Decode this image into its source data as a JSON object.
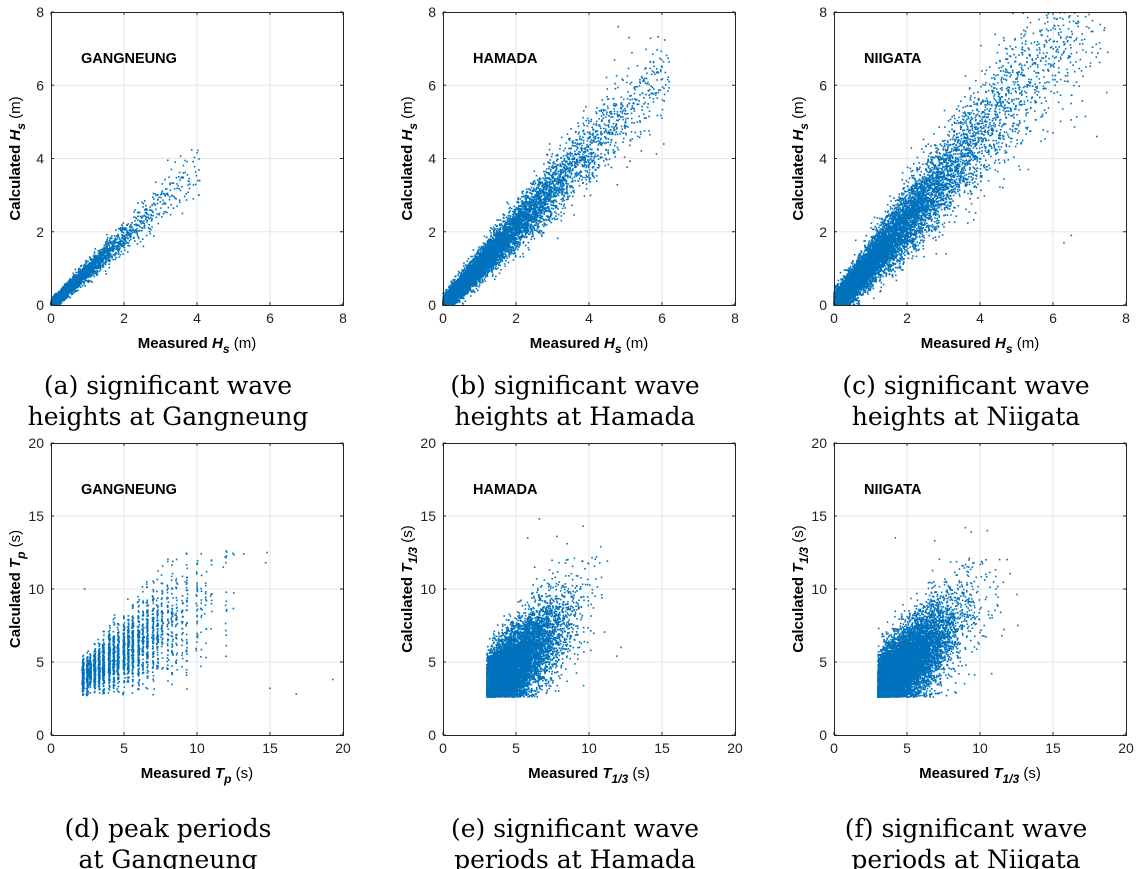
{
  "chart_data": [
    {
      "panel": "a",
      "type": "scatter",
      "station_label": "GANGNEUNG",
      "xlabel": {
        "prefix": "Measured ",
        "sym": "H",
        "sub": "s",
        "unit": " (m)"
      },
      "ylabel": {
        "prefix": "Calculated ",
        "sym": "H",
        "sub": "s",
        "unit": " (m)"
      },
      "xlim": [
        0,
        8
      ],
      "ylim": [
        0,
        8
      ],
      "xticks": [
        "0",
        "2",
        "4",
        "6",
        "8"
      ],
      "yticks": [
        "0",
        "2",
        "4",
        "6",
        "8"
      ],
      "caption": [
        "(a) significant wave",
        "heights at Gangneung"
      ],
      "color": "#0072BD",
      "dist": {
        "kind": "h",
        "n": 2600,
        "xmax": 4.1,
        "slope": 0.92,
        "noise": 0.2
      },
      "points": [
        [
          3.2,
          3.95
        ],
        [
          3.4,
          3.9
        ],
        [
          3.5,
          3.5
        ],
        [
          3.8,
          3.3
        ],
        [
          3.9,
          2.9
        ],
        [
          4.05,
          3.0
        ],
        [
          3.6,
          2.5
        ],
        [
          3.3,
          3.7
        ],
        [
          2.5,
          2.8
        ],
        [
          2.9,
          3.0
        ]
      ]
    },
    {
      "panel": "b",
      "type": "scatter",
      "station_label": "HAMADA",
      "xlabel": {
        "prefix": "Measured ",
        "sym": "H",
        "sub": "s",
        "unit": " (m)"
      },
      "ylabel": {
        "prefix": "Calculated ",
        "sym": "H",
        "sub": "s",
        "unit": " (m)"
      },
      "xlim": [
        0,
        8
      ],
      "ylim": [
        0,
        8
      ],
      "xticks": [
        "0",
        "2",
        "4",
        "6",
        "8"
      ],
      "yticks": [
        "0",
        "2",
        "4",
        "6",
        "8"
      ],
      "caption": [
        "(b) significant wave",
        "heights at Hamada"
      ],
      "color": "#0072BD",
      "dist": {
        "kind": "h",
        "n": 9000,
        "xmax": 6.2,
        "slope": 1.05,
        "noise": 0.3
      },
      "points": [
        [
          4.8,
          7.6
        ],
        [
          5.1,
          7.3
        ],
        [
          5.8,
          6.3
        ],
        [
          6.2,
          6.1
        ],
        [
          5.0,
          5.3
        ],
        [
          6.0,
          5.1
        ],
        [
          5.3,
          5.6
        ],
        [
          4.5,
          5.9
        ],
        [
          5.9,
          5.8
        ]
      ]
    },
    {
      "panel": "c",
      "type": "scatter",
      "station_label": "NIIGATA",
      "xlabel": {
        "prefix": "Measured ",
        "sym": "H",
        "sub": "s",
        "unit": " (m)"
      },
      "ylabel": {
        "prefix": "Calculated ",
        "sym": "H",
        "sub": "s",
        "unit": " (m)"
      },
      "xlim": [
        0,
        8
      ],
      "ylim": [
        0,
        8
      ],
      "xticks": [
        "0",
        "2",
        "4",
        "6",
        "8"
      ],
      "yticks": [
        "0",
        "2",
        "4",
        "6",
        "8"
      ],
      "caption": [
        "(c) significant wave",
        "heights at Niigata"
      ],
      "color": "#0072BD",
      "dist": {
        "kind": "h",
        "n": 10000,
        "xmax": 7.5,
        "slope": 1.15,
        "noise": 0.45
      },
      "points": [
        [
          7.4,
          7.5
        ],
        [
          7.5,
          6.9
        ],
        [
          6.8,
          7.4
        ],
        [
          7.3,
          7.0
        ],
        [
          6.5,
          5.5
        ],
        [
          6.0,
          4.7
        ],
        [
          7.2,
          4.6
        ],
        [
          6.5,
          1.9
        ],
        [
          6.3,
          1.7
        ],
        [
          5.2,
          7.5
        ]
      ]
    },
    {
      "panel": "d",
      "type": "scatter",
      "station_label": "GANGNEUNG",
      "xlabel": {
        "prefix": "Measured ",
        "sym": "T",
        "sub": "p",
        "unit": " (s)"
      },
      "ylabel": {
        "prefix": "Calculated ",
        "sym": "T",
        "sub": "p",
        "unit": " (s)"
      },
      "xlim": [
        0,
        20
      ],
      "ylim": [
        0,
        20
      ],
      "xticks": [
        "0",
        "5",
        "10",
        "15",
        "20"
      ],
      "yticks": [
        "0",
        "5",
        "10",
        "15",
        "20"
      ],
      "caption": [
        "(d) peak periods",
        "at Gangneung"
      ],
      "color": "#0072BD",
      "dist": {
        "kind": "tp",
        "n": 3000
      },
      "points": [
        [
          14.8,
          12.5
        ],
        [
          14.7,
          11.8
        ],
        [
          13.2,
          12.4
        ],
        [
          15.0,
          3.2
        ],
        [
          19.3,
          3.8
        ],
        [
          16.8,
          2.8
        ],
        [
          12.0,
          12.6
        ],
        [
          11.8,
          11.5
        ],
        [
          2.3,
          10.0
        ]
      ]
    },
    {
      "panel": "e",
      "type": "scatter",
      "station_label": "HAMADA",
      "xlabel": {
        "prefix": "Measured ",
        "sym": "T",
        "sub": "1/3",
        "unit": " (s)"
      },
      "ylabel": {
        "prefix": "Calculated ",
        "sym": "T",
        "sub": "1/3",
        "unit": " (s)"
      },
      "xlim": [
        0,
        20
      ],
      "ylim": [
        0,
        20
      ],
      "xticks": [
        "0",
        "5",
        "10",
        "15",
        "20"
      ],
      "yticks": [
        "0",
        "5",
        "10",
        "15",
        "20"
      ],
      "caption": [
        "(e) significant wave",
        "periods at Hamada"
      ],
      "color": "#0072BD",
      "dist": {
        "kind": "t13",
        "n": 8500,
        "xmax": 12.0
      },
      "points": [
        [
          6.6,
          14.8
        ],
        [
          7.8,
          13.6
        ],
        [
          9.6,
          14.3
        ],
        [
          10.8,
          12.9
        ],
        [
          5.8,
          13.5
        ],
        [
          12.2,
          6.0
        ],
        [
          11.9,
          5.4
        ],
        [
          8.5,
          13.1
        ]
      ]
    },
    {
      "panel": "f",
      "type": "scatter",
      "station_label": "NIIGATA",
      "xlabel": {
        "prefix": "Measured ",
        "sym": "T",
        "sub": "1/3",
        "unit": " (s)"
      },
      "ylabel": {
        "prefix": "Calculated ",
        "sym": "T",
        "sub": "1/3",
        "unit": " (s)"
      },
      "xlim": [
        0,
        20
      ],
      "ylim": [
        0,
        20
      ],
      "xticks": [
        "0",
        "5",
        "10",
        "15",
        "20"
      ],
      "yticks": [
        "0",
        "5",
        "10",
        "15",
        "20"
      ],
      "caption": [
        "(f) significant wave",
        "periods at Niigata"
      ],
      "color": "#0072BD",
      "dist": {
        "kind": "t13",
        "n": 9500,
        "xmax": 12.6
      },
      "points": [
        [
          9.0,
          14.2
        ],
        [
          9.4,
          13.9
        ],
        [
          4.2,
          13.5
        ],
        [
          10.5,
          14.0
        ],
        [
          6.9,
          13.3
        ],
        [
          11.5,
          6.8
        ],
        [
          12.6,
          7.5
        ],
        [
          10.8,
          4.2
        ]
      ]
    }
  ]
}
